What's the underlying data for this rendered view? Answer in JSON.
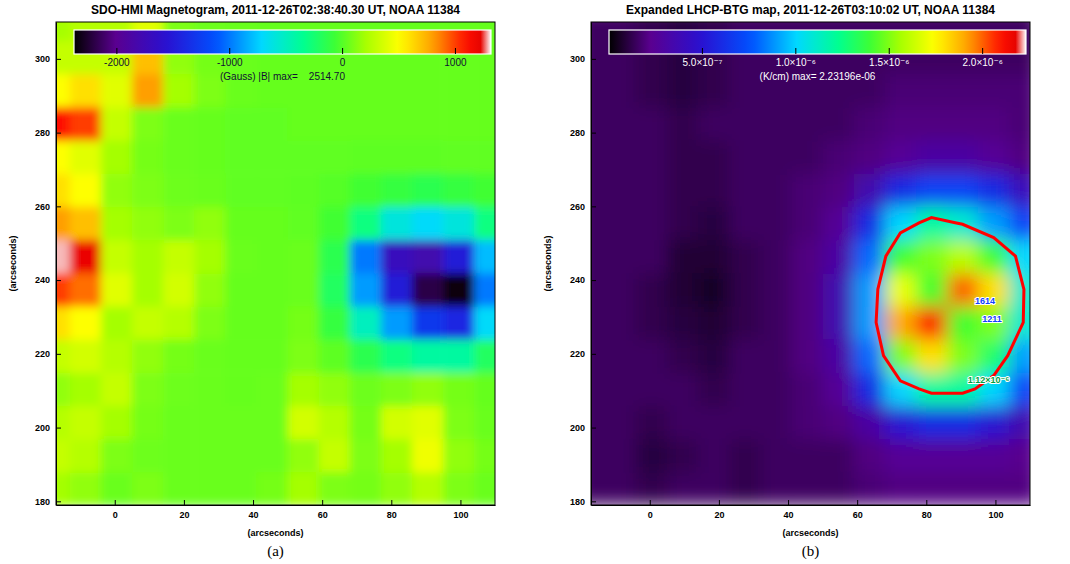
{
  "chart_data": [
    {
      "type": "heatmap",
      "title": "SDO-HMI Magnetogram, 2011-12-26T02:38:40.30 UT, NOAA 11384",
      "x_label": "(arcseconds)",
      "y_label": "(arcseconds)",
      "caption": "(a)",
      "xlim": [
        -17,
        110
      ],
      "ylim": [
        179,
        310
      ],
      "xticks": [
        0,
        20,
        40,
        60,
        80,
        100
      ],
      "yticks": [
        180,
        200,
        220,
        240,
        260,
        280,
        300
      ],
      "x": [
        -17.5,
        -8.5,
        0.5,
        9.5,
        18.5,
        27.5,
        36.5,
        45.5,
        54.5,
        63.5,
        72.5,
        81.5,
        90.5,
        99.5,
        108.5
      ],
      "y": [
        183.5,
        192.5,
        201.5,
        210.5,
        219.5,
        228.5,
        237.5,
        246.5,
        255.5,
        264.5,
        273.5,
        282.5,
        291.5,
        300.5,
        309.5
      ],
      "values": [
        [
          200,
          150,
          50,
          100,
          50,
          50,
          50,
          80,
          200,
          100,
          80,
          150,
          250,
          100,
          50
        ],
        [
          300,
          250,
          100,
          60,
          50,
          50,
          50,
          50,
          150,
          300,
          100,
          200,
          450,
          150,
          80
        ],
        [
          250,
          300,
          200,
          80,
          50,
          50,
          50,
          50,
          350,
          250,
          80,
          350,
          400,
          100,
          50
        ],
        [
          150,
          200,
          300,
          100,
          60,
          50,
          40,
          50,
          200,
          150,
          60,
          100,
          150,
          80,
          40
        ],
        [
          300,
          350,
          250,
          150,
          80,
          50,
          40,
          40,
          100,
          20,
          -150,
          -300,
          -400,
          -400,
          -200
        ],
        [
          600,
          500,
          200,
          300,
          250,
          100,
          40,
          40,
          80,
          -100,
          -500,
          -900,
          -1300,
          -1400,
          -700
        ],
        [
          1000,
          900,
          400,
          200,
          350,
          150,
          40,
          40,
          50,
          -200,
          -900,
          -1500,
          -2200,
          -2350,
          -1000
        ],
        [
          1300,
          1200,
          300,
          200,
          300,
          200,
          50,
          40,
          50,
          -150,
          -1000,
          -1700,
          -1800,
          -1500,
          -800
        ],
        [
          800,
          700,
          200,
          150,
          100,
          150,
          40,
          40,
          30,
          -50,
          -300,
          -600,
          -700,
          -600,
          -300
        ],
        [
          600,
          500,
          150,
          100,
          60,
          50,
          30,
          30,
          20,
          0,
          -50,
          -100,
          -150,
          -100,
          -50
        ],
        [
          500,
          400,
          200,
          80,
          50,
          40,
          30,
          30,
          30,
          30,
          20,
          20,
          20,
          30,
          30
        ],
        [
          1100,
          1000,
          300,
          100,
          50,
          40,
          30,
          30,
          40,
          40,
          40,
          40,
          40,
          40,
          40
        ],
        [
          500,
          600,
          400,
          800,
          200,
          100,
          50,
          40,
          40,
          40,
          40,
          40,
          40,
          40,
          40
        ],
        [
          300,
          300,
          300,
          700,
          150,
          80,
          50,
          40,
          40,
          40,
          40,
          40,
          40,
          40,
          40
        ],
        [
          200,
          250,
          250,
          400,
          100,
          60,
          50,
          40,
          40,
          40,
          40,
          40,
          40,
          40,
          40
        ]
      ],
      "colorbar": {
        "range": [
          -2380,
          1315
        ],
        "ticks": [
          -2000,
          -1000,
          0,
          1000
        ],
        "label": "(Gauss) |B| max=    2514.70"
      }
    },
    {
      "type": "heatmap",
      "title": "Expanded LHCP-BTG map, 2011-12-26T03:10:02 UT, NOAA 11384",
      "x_label": "(arcseconds)",
      "y_label": "(arcseconds)",
      "caption": "(b)",
      "xlim": [
        -17,
        110
      ],
      "ylim": [
        179,
        310
      ],
      "xticks": [
        0,
        20,
        40,
        60,
        80,
        100
      ],
      "yticks": [
        180,
        200,
        220,
        240,
        260,
        280,
        300
      ],
      "x": [
        -17.5,
        -8.5,
        0.5,
        9.5,
        18.5,
        27.5,
        36.5,
        45.5,
        54.5,
        63.5,
        72.5,
        81.5,
        90.5,
        99.5,
        108.5
      ],
      "y": [
        183.5,
        192.5,
        201.5,
        210.5,
        219.5,
        228.5,
        237.5,
        246.5,
        255.5,
        264.5,
        273.5,
        282.5,
        291.5,
        300.5,
        309.5
      ],
      "values": [
        [
          1.5e-07,
          1.5e-07,
          1.2e-07,
          1.5e-07,
          1.5e-07,
          1.2e-07,
          1.5e-07,
          1.5e-07,
          1.5e-07,
          1.8e-07,
          2e-07,
          2e-07,
          2e-07,
          2e-07,
          2e-07
        ],
        [
          1.5e-07,
          1.5e-07,
          1e-07,
          1.2e-07,
          1.5e-07,
          1.2e-07,
          1.5e-07,
          1.5e-07,
          1.5e-07,
          2e-07,
          2.5e-07,
          2.5e-07,
          2.5e-07,
          2.5e-07,
          2.2e-07
        ],
        [
          1.5e-07,
          1.5e-07,
          1.2e-07,
          1.5e-07,
          1.5e-07,
          1.5e-07,
          1.5e-07,
          1.8e-07,
          2e-07,
          3e-07,
          5e-07,
          6e-07,
          6e-07,
          5e-07,
          3.5e-07
        ],
        [
          1.5e-07,
          1.5e-07,
          1.5e-07,
          1.5e-07,
          1.2e-07,
          1.5e-07,
          1.5e-07,
          1.8e-07,
          2.5e-07,
          6e-07,
          1e-06,
          1.2e-06,
          1.2e-06,
          1e-06,
          7e-07
        ],
        [
          1.5e-07,
          1.5e-07,
          1.5e-07,
          1.2e-07,
          1e-07,
          1.5e-07,
          1.5e-07,
          2e-07,
          3e-07,
          8e-07,
          1.5e-06,
          1.8e-06,
          1.5e-06,
          1.3e-06,
          9e-07
        ],
        [
          1.5e-07,
          1.5e-07,
          1.2e-07,
          1e-07,
          8e-08,
          1.2e-07,
          1.5e-07,
          2e-07,
          3.5e-07,
          9e-07,
          1.9e-06,
          2.1e-06,
          1.4e-06,
          1.5e-06,
          1.1e-06
        ],
        [
          1.5e-07,
          1.5e-07,
          1.2e-07,
          8e-08,
          6e-08,
          1.2e-07,
          1.5e-07,
          2e-07,
          3.5e-07,
          9e-07,
          1.7e-06,
          1.4e-06,
          2e-06,
          1.8e-06,
          1.1e-06
        ],
        [
          1.5e-07,
          1.5e-07,
          1.5e-07,
          8e-08,
          8e-08,
          1.2e-07,
          1.5e-07,
          2e-07,
          3e-07,
          8e-07,
          1.4e-06,
          1.5e-06,
          1.6e-06,
          1.4e-06,
          1e-06
        ],
        [
          1.5e-07,
          1.5e-07,
          1.5e-07,
          1.2e-07,
          1e-07,
          1.5e-07,
          1.5e-07,
          1.8e-07,
          2.5e-07,
          6e-07,
          1e-06,
          1.2e-06,
          1.1e-06,
          9e-07,
          7e-07
        ],
        [
          1.5e-07,
          1.5e-07,
          1.5e-07,
          1.2e-07,
          1.2e-07,
          1.5e-07,
          1.5e-07,
          1.8e-07,
          2e-07,
          3.5e-07,
          6e-07,
          7e-07,
          7e-07,
          6e-07,
          4e-07
        ],
        [
          1.5e-07,
          1.5e-07,
          1.5e-07,
          1.2e-07,
          1.2e-07,
          1.5e-07,
          1.5e-07,
          1.5e-07,
          1.8e-07,
          2e-07,
          2.5e-07,
          3e-07,
          3e-07,
          2.5e-07,
          2e-07
        ],
        [
          1.5e-07,
          1.5e-07,
          1.5e-07,
          1.2e-07,
          1.5e-07,
          1.5e-07,
          1.5e-07,
          1.5e-07,
          1.5e-07,
          1.8e-07,
          2e-07,
          2e-07,
          2e-07,
          2e-07,
          1.8e-07
        ],
        [
          1.5e-07,
          1.5e-07,
          1.2e-07,
          1e-07,
          1.2e-07,
          1.5e-07,
          1.5e-07,
          1.5e-07,
          1.5e-07,
          1.5e-07,
          1.8e-07,
          1.8e-07,
          1.8e-07,
          1.8e-07,
          1.8e-07
        ],
        [
          1.5e-07,
          1.5e-07,
          1.2e-07,
          1e-07,
          1.2e-07,
          1.5e-07,
          1.5e-07,
          1.5e-07,
          1.5e-07,
          1.5e-07,
          1.5e-07,
          1.5e-07,
          1.5e-07,
          1.5e-07,
          1.5e-07
        ],
        [
          1.5e-07,
          1.5e-07,
          1.2e-07,
          1e-07,
          1.2e-07,
          1.5e-07,
          1.5e-07,
          1.5e-07,
          1.5e-07,
          1.5e-07,
          1.5e-07,
          1.5e-07,
          1.5e-07,
          1.5e-07,
          1.5e-07
        ]
      ],
      "colorbar": {
        "range": [
          0,
          2.232e-06
        ],
        "ticks": [
          {
            "value": 5e-07,
            "label": "5.0×10⁻⁷"
          },
          {
            "value": 1e-06,
            "label": "1.0×10⁻⁶"
          },
          {
            "value": 1.5e-06,
            "label": "1.5×10⁻⁶"
          },
          {
            "value": 2e-06,
            "label": "2.0×10⁻⁶"
          }
        ],
        "label": "(K/cm) max= 2.23196e-06"
      },
      "contours": [
        {
          "level": 1.12e-06,
          "color": "#ff0000"
        }
      ],
      "annotations": [
        {
          "text": "1614",
          "x": 97,
          "y": 233.5,
          "color": "#1040ff"
        },
        {
          "text": "1211",
          "x": 99,
          "y": 228.5,
          "color": "#1040ff"
        },
        {
          "text": "1.12×10⁻⁶",
          "x": 98,
          "y": 212,
          "color": "#00a040"
        }
      ]
    }
  ]
}
